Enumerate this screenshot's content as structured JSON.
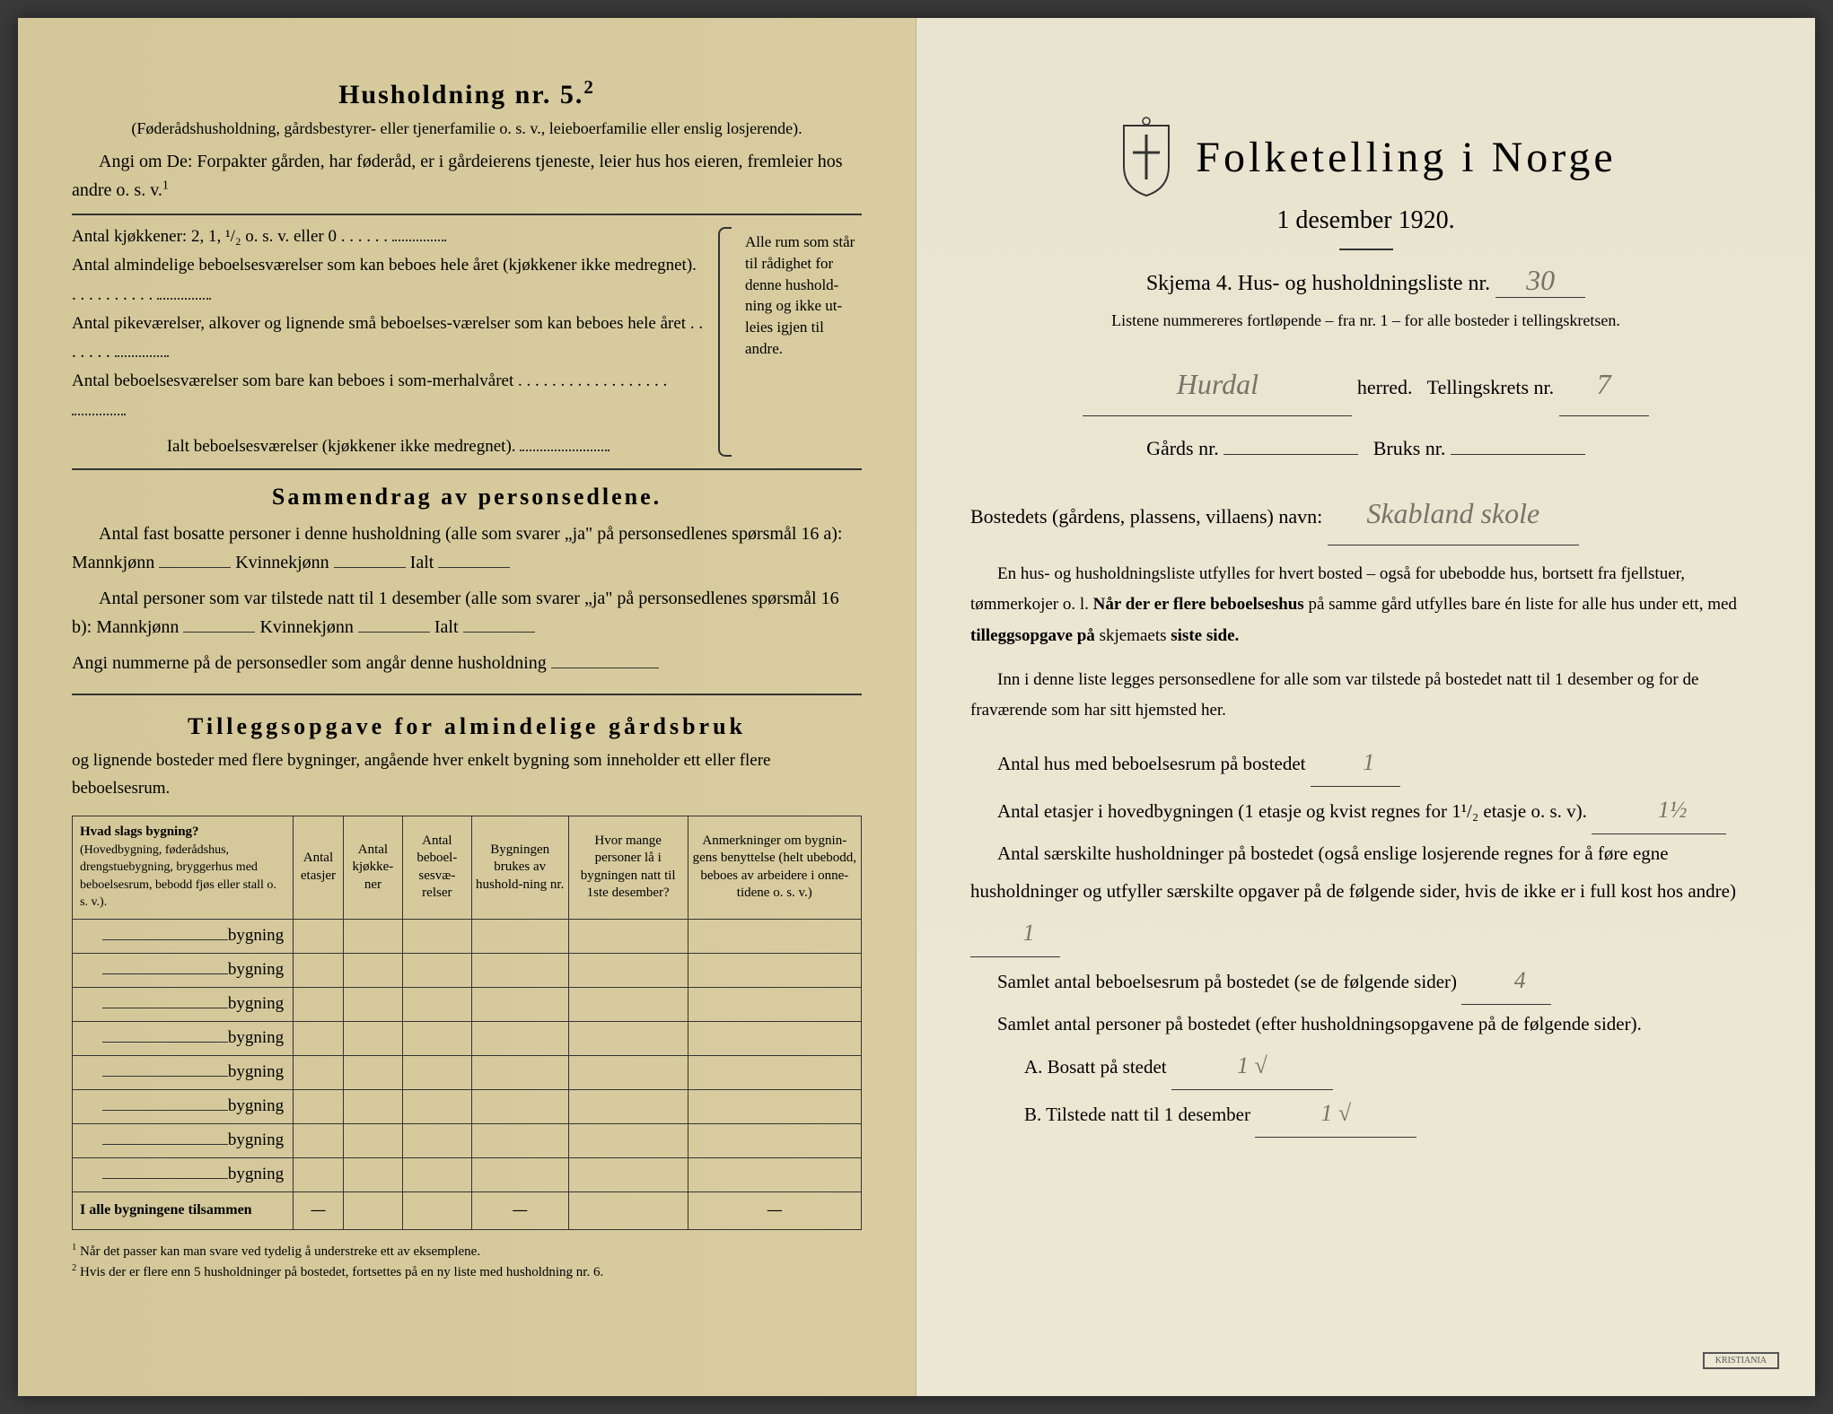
{
  "leftPage": {
    "householdTitle": "Husholdning nr. 5.",
    "householdSup": "2",
    "householdSubtitle": "(Føderådshusholdning, gårdsbestyrer- eller tjenerfamilie o. s. v., leieboerfamilie eller enslig losjerende).",
    "angiLine": "Angi om De: Forpakter gården, har føderåd, er i gårdeierens tjeneste, leier hus hos eieren, fremleier hos andre o. s. v.",
    "angiSup": "1",
    "kitchenLine": "Antal kjøkkener: 2, 1, ¹/₂ o. s. v. eller 0",
    "room1": "Antal almindelige beboelsesværelser som kan beboes hele året (kjøkkener ikke medregnet).",
    "room2": "Antal pikeværelser, alkover og lignende små beboelses-værelser som kan beboes hele året",
    "room3": "Antal beboelsesværelser som bare kan beboes i som-merhalvåret",
    "roomTotal": "Ialt beboelsesværelser (kjøkkener ikke medregnet).",
    "roomBracket": "Alle rum som står til rådighet for denne hushold-ning og ikke ut-leies igjen til andre.",
    "summaryTitle": "Sammendrag av personsedlene.",
    "summary1": "Antal fast bosatte personer i denne husholdning (alle som svarer „ja\" på personsedlenes spørsmål 16 a): Mannkjønn",
    "summary1b": "Kvinnekjønn",
    "summary1c": "Ialt",
    "summary2": "Antal personer som var tilstede natt til 1 desember (alle som svarer „ja\" på personsedlenes spørsmål 16 b): Mannkjønn",
    "summary3": "Angi nummerne på de personsedler som angår denne husholdning",
    "tilleggsTitle": "Tilleggsopgave for almindelige gårdsbruk",
    "tilleggsSubtitle": "og lignende bosteder med flere bygninger, angående hver enkelt bygning som inneholder ett eller flere beboelsesrum.",
    "tableHeaders": {
      "col1": "Hvad slags bygning?",
      "col1sub": "(Hovedbygning, føderådshus, drengstuebygning, bryggerhus med beboelsesrum, bebodd fjøs eller stall o. s. v.).",
      "col2": "Antal etasjer",
      "col3": "Antal kjøkke-ner",
      "col4": "Antal beboel-sesvæ-relser",
      "col5": "Bygningen brukes av hushold-ning nr.",
      "col6": "Hvor mange personer lå i bygningen natt til 1ste desember?",
      "col7": "Anmerkninger om bygnin-gens benyttelse (helt ubebodd, beboes av arbeidere i onne-tidene o. s. v.)"
    },
    "bygningLabel": "bygning",
    "totalRow": "I alle bygningene tilsammen",
    "footnote1": "Når det passer kan man svare ved tydelig å understreke ett av eksemplene.",
    "footnote2": "Hvis der er flere enn 5 husholdninger på bostedet, fortsettes på en ny liste med husholdning nr. 6."
  },
  "rightPage": {
    "mainTitle": "Folketelling i Norge",
    "date": "1 desember 1920.",
    "skjemaLine": "Skjema 4. Hus- og husholdningsliste nr.",
    "listNumber": "30",
    "listNote": "Listene nummereres fortløpende – fra nr. 1 – for alle bosteder i tellingskretsen.",
    "herred": "Hurdal",
    "herredLabel": "herred.",
    "tellingskrets": "Tellingskrets nr.",
    "tellingskretsNr": "7",
    "gardsNr": "Gårds nr.",
    "bruksNr": "Bruks nr.",
    "bostedLabel": "Bostedets (gårdens, plassens, villaens) navn:",
    "bostedNavn": "Skabland skole",
    "instruction1": "En hus- og husholdningsliste utfylles for hvert bosted – også for ubebodde hus, bortsett fra fjellstuer, tømmerkojer o. l.",
    "instruction1b": "Når der er flere beboelseshus",
    "instruction1c": "på samme gård utfylles bare én liste for alle hus under ett, med",
    "instruction1d": "tilleggsopgave på",
    "instruction1e": "skjemaets",
    "instruction1f": "siste side.",
    "instruction2": "Inn i denne liste legges personsedlene for alle som var tilstede på bostedet natt til 1 desember og for de fraværende som har sitt hjemsted her.",
    "antalHus": "Antal hus med beboelsesrum på bostedet",
    "antalHusVal": "1",
    "antalEtasjer": "Antal etasjer i hovedbygningen (1 etasje og kvist regnes for 1¹/₂ etasje o. s. v).",
    "antalEtasjerVal": "1½",
    "antalHusholdninger": "Antal særskilte husholdninger på bostedet (også enslige losjerende regnes for å føre egne husholdninger og utfyller særskilte opgaver på de følgende sider, hvis de ikke er i full kost hos andre)",
    "antalHusholdningerVal": "1",
    "samletBeboelsesrum": "Samlet antal beboelsesrum på bostedet (se de følgende sider)",
    "samletBeboelsesrumVal": "4",
    "samletPersoner": "Samlet antal personer på bostedet (efter husholdningsopgavene på de følgende sider).",
    "bosattLabel": "A. Bosatt på stedet",
    "bosattVal": "1 √",
    "tilstedeLabel": "B. Tilstede natt til 1 desember",
    "tilstedeVal": "1 √"
  },
  "colors": {
    "leftBg": "#d4c89a",
    "rightBg": "#e8e4d0",
    "text": "#2a2a2a",
    "handwriting": "#7a7268"
  }
}
